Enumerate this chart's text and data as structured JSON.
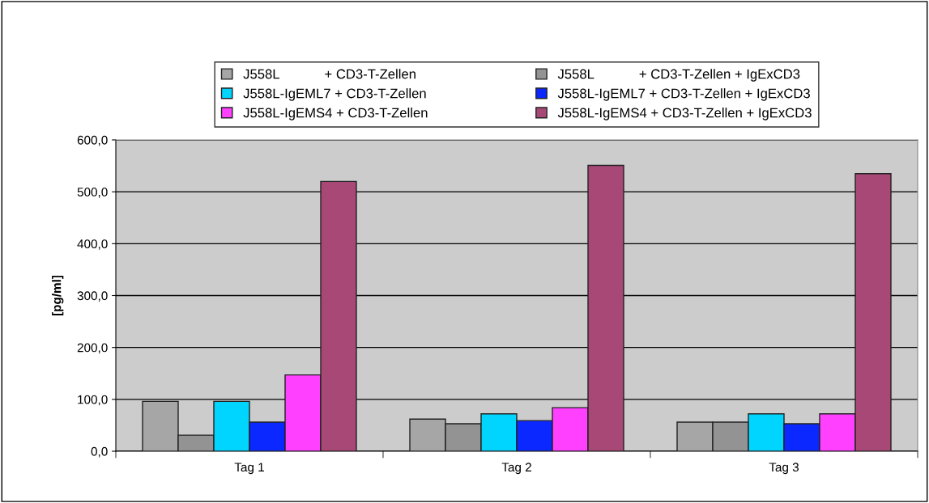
{
  "chart_data": {
    "type": "bar",
    "ylabel": "[pg/ml]",
    "categories": [
      "Tag 1",
      "Tag 2",
      "Tag 3"
    ],
    "series": [
      {
        "name": "J558L            + CD3-T-Zellen",
        "color": "#a6a6a6",
        "values": [
          96,
          62,
          56
        ]
      },
      {
        "name": "J558L            + CD3-T-Zellen + IgExCD3",
        "color": "#939393",
        "values": [
          31,
          53,
          56
        ]
      },
      {
        "name": "J558L-IgEML7 + CD3-T-Zellen",
        "color": "#00d5ff",
        "values": [
          96,
          72,
          72
        ]
      },
      {
        "name": "J558L-IgEML7 + CD3-T-Zellen + IgExCD3",
        "color": "#0a28ff",
        "values": [
          56,
          59,
          53
        ]
      },
      {
        "name": "J558L-IgEMS4 + CD3-T-Zellen",
        "color": "#ff40ff",
        "values": [
          147,
          84,
          72
        ]
      },
      {
        "name": "J558L-IgEMS4 + CD3-T-Zellen + IgExCD3",
        "color": "#a84876",
        "values": [
          520,
          551,
          535
        ]
      }
    ],
    "ylim": [
      0,
      600
    ],
    "yticks": [
      {
        "value": 0,
        "label": "0,0"
      },
      {
        "value": 100,
        "label": "100,0"
      },
      {
        "value": 200,
        "label": "200,0"
      },
      {
        "value": 300,
        "label": "300,0"
      },
      {
        "value": 400,
        "label": "400,0"
      },
      {
        "value": 500,
        "label": "500,0"
      },
      {
        "value": 600,
        "label": "600,0"
      }
    ],
    "grid": "y",
    "legend": "top"
  }
}
